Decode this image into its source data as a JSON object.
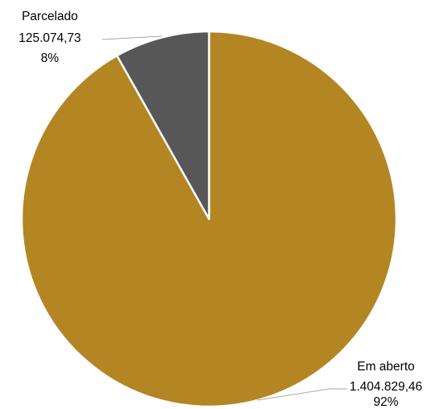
{
  "chart_data": {
    "type": "pie",
    "title": "",
    "slices": [
      {
        "name": "Em aberto",
        "value": 1404829.46,
        "value_label": "1.404.829,46",
        "percent_label": "92%",
        "color": "#B48523"
      },
      {
        "name": "Parcelado",
        "value": 125074.73,
        "value_label": "125.074,73",
        "percent_label": "8%",
        "color": "#575757"
      }
    ],
    "start": "12 o'clock",
    "direction": "clockwise",
    "slice_border_color": "#FFFFFF",
    "leader_line_color": "#A6A6A6",
    "legend": "none"
  }
}
